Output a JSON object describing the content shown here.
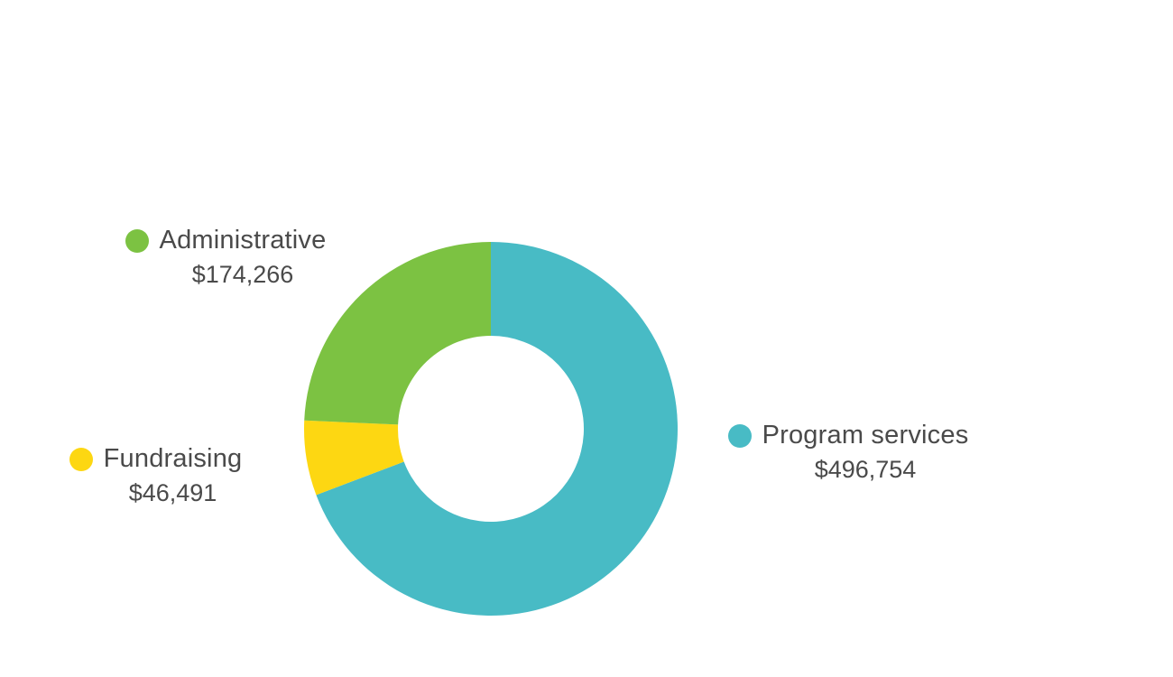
{
  "chart_data": {
    "type": "pie",
    "variant": "donut",
    "categories": [
      "Program services",
      "Fundraising",
      "Administrative"
    ],
    "values": [
      496754,
      46491,
      174266
    ],
    "value_labels": [
      "$496,754",
      "$46,491",
      "$174,266"
    ],
    "colors": [
      "#48BBC5",
      "#FDD712",
      "#7CC242"
    ],
    "start_angle_deg": 0,
    "direction": "clockwise",
    "title": ""
  },
  "legend": {
    "program": {
      "label": "Program services",
      "value": "$496,754",
      "color": "#48BBC5"
    },
    "fundraising": {
      "label": "Fundraising",
      "value": "$46,491",
      "color": "#FDD712"
    },
    "administrative": {
      "label": "Administrative",
      "value": "$174,266",
      "color": "#7CC242"
    }
  }
}
